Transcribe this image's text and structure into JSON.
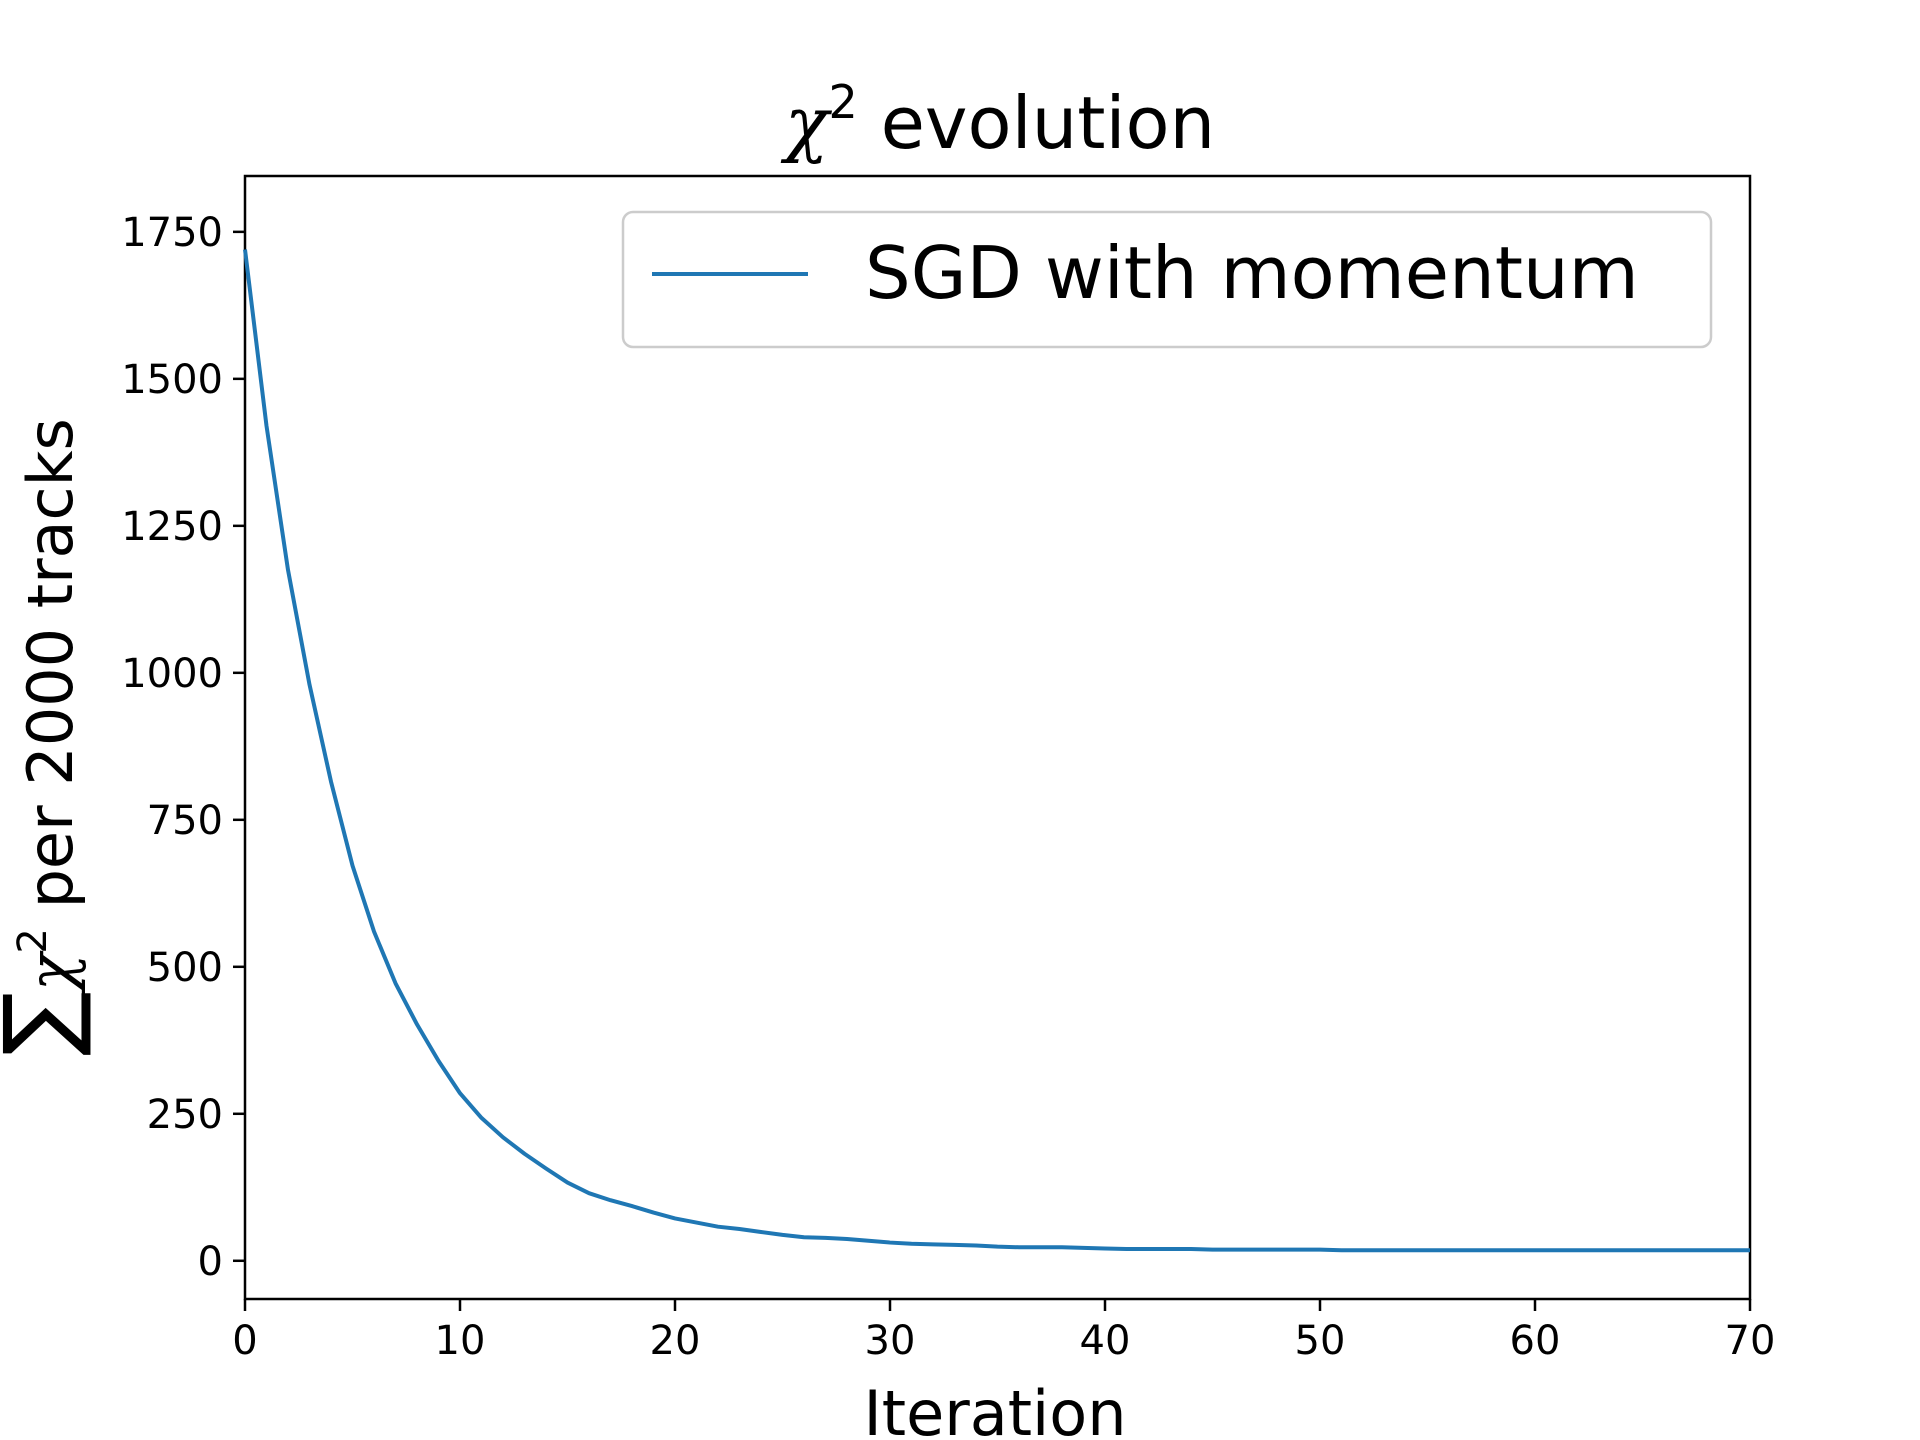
{
  "chart_data": {
    "type": "line",
    "title_main": "χ",
    "title_sup": "2",
    "title_rest": " evolution",
    "xlabel": "Iteration",
    "ylabel_sum": "∑",
    "ylabel_chi": "χ",
    "ylabel_sup": "2",
    "ylabel_rest": " per 2000 tracks",
    "xlim": [
      0,
      70
    ],
    "ylim": [
      -65,
      1845
    ],
    "xticks": [
      0,
      10,
      20,
      30,
      40,
      50,
      60,
      70
    ],
    "yticks": [
      0,
      250,
      500,
      750,
      1000,
      1250,
      1500,
      1750
    ],
    "grid": false,
    "legend_position": "top-right",
    "series": [
      {
        "name": "SGD with momentum",
        "color": "#1f77b4",
        "x": [
          0,
          1,
          2,
          3,
          4,
          5,
          6,
          7,
          8,
          9,
          10,
          11,
          12,
          13,
          14,
          15,
          16,
          17,
          18,
          19,
          20,
          21,
          22,
          23,
          24,
          25,
          26,
          27,
          28,
          29,
          30,
          31,
          32,
          33,
          34,
          35,
          36,
          37,
          38,
          39,
          40,
          41,
          42,
          43,
          44,
          45,
          46,
          47,
          48,
          49,
          50,
          51,
          52,
          53,
          54,
          55,
          56,
          57,
          58,
          59,
          60,
          61,
          62,
          63,
          64,
          65,
          66,
          67,
          68,
          69,
          70
        ],
        "y": [
          1720,
          1420,
          1175,
          980,
          815,
          672,
          560,
          472,
          402,
          340,
          285,
          243,
          210,
          182,
          157,
          133,
          115,
          103,
          93,
          82,
          72,
          65,
          58,
          54,
          49,
          44,
          40,
          39,
          37,
          34,
          31,
          29,
          28,
          27,
          26,
          24,
          23,
          23,
          23,
          22,
          21,
          20,
          20,
          20,
          20,
          19,
          19,
          19,
          19,
          19,
          19,
          18,
          18,
          18,
          18,
          18,
          18,
          18,
          18,
          18,
          18,
          18,
          18,
          18,
          18,
          18,
          18,
          18,
          18,
          18,
          18
        ]
      }
    ]
  }
}
